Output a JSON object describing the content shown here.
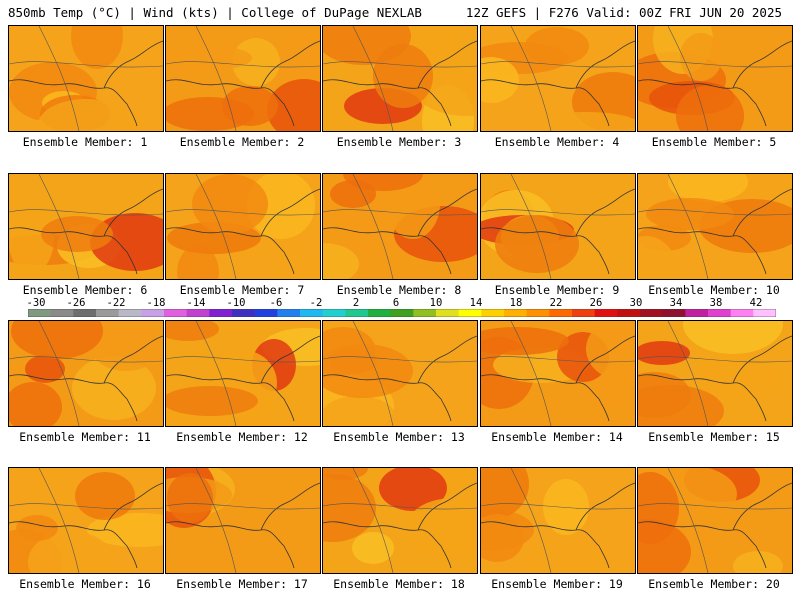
{
  "header": {
    "left_title": "850mb Temp (°C) | Wind (kts) | College of DuPage NEXLAB",
    "right_title": "12Z GEFS | F276 Valid: 00Z FRI JUN 20 2025"
  },
  "members": [
    {
      "label": "Ensemble Member: 1"
    },
    {
      "label": "Ensemble Member: 2"
    },
    {
      "label": "Ensemble Member: 3"
    },
    {
      "label": "Ensemble Member: 4"
    },
    {
      "label": "Ensemble Member: 5"
    },
    {
      "label": "Ensemble Member: 6"
    },
    {
      "label": "Ensemble Member: 7"
    },
    {
      "label": "Ensemble Member: 8"
    },
    {
      "label": "Ensemble Member: 9"
    },
    {
      "label": "Ensemble Member: 10"
    },
    {
      "label": "Ensemble Member: 11"
    },
    {
      "label": "Ensemble Member: 12"
    },
    {
      "label": "Ensemble Member: 13"
    },
    {
      "label": "Ensemble Member: 14"
    },
    {
      "label": "Ensemble Member: 15"
    },
    {
      "label": "Ensemble Member: 16"
    },
    {
      "label": "Ensemble Member: 17"
    },
    {
      "label": "Ensemble Member: 18"
    },
    {
      "label": "Ensemble Member: 19"
    },
    {
      "label": "Ensemble Member: 20"
    }
  ],
  "colorbar": {
    "tick_labels": [
      "-30",
      "-26",
      "-22",
      "-18",
      "-14",
      "-10",
      "-6",
      "-2",
      "2",
      "6",
      "10",
      "14",
      "18",
      "22",
      "26",
      "30",
      "34",
      "38",
      "42"
    ],
    "colors": [
      "#7f9a80",
      "#8a8a8a",
      "#6e6e6e",
      "#9a9a9a",
      "#b8b8c8",
      "#c8a0e8",
      "#e060e0",
      "#c040d0",
      "#8020d0",
      "#4030c0",
      "#2040e0",
      "#2080f0",
      "#20b8f0",
      "#20d0d0",
      "#20c890",
      "#20b040",
      "#40a020",
      "#90c020",
      "#e0e020",
      "#ffff00",
      "#ffd000",
      "#ffb000",
      "#ff9000",
      "#ff6a00",
      "#f04010",
      "#e01010",
      "#c01010",
      "#a01020",
      "#901030",
      "#c020a0",
      "#e040d0",
      "#ff80f0",
      "#ffc0ff"
    ]
  }
}
